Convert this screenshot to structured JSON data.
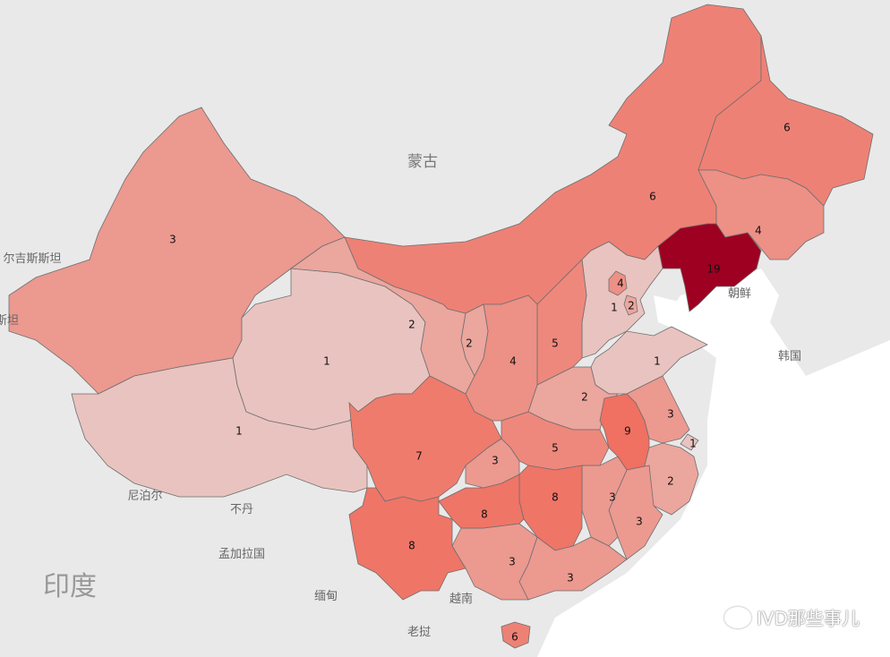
{
  "map": {
    "country_labels": {
      "mongolia": "蒙古",
      "kyrgyzstan": "尔吉斯斯坦",
      "tajikistan_partial": "斯坦",
      "north_korea": "朝鲜",
      "south_korea": "韩国",
      "nepal": "尼泊尔",
      "bhutan": "不丹",
      "bangladesh": "孟加拉国",
      "india": "印度",
      "myanmar": "缅甸",
      "vietnam": "越南",
      "laos": "老挝"
    },
    "color_scale": {
      "low": "#e9c3bf",
      "high": "#9e0021"
    },
    "regions": [
      {
        "id": "xinjiang",
        "value": 3
      },
      {
        "id": "tibet",
        "value": 1
      },
      {
        "id": "qinghai",
        "value": 1
      },
      {
        "id": "gansu",
        "value": 2
      },
      {
        "id": "inner-mongolia",
        "value": 6
      },
      {
        "id": "heilongjiang",
        "value": 6
      },
      {
        "id": "jilin",
        "value": 4
      },
      {
        "id": "liaoning",
        "value": 19
      },
      {
        "id": "hebei",
        "value": 1
      },
      {
        "id": "beijing",
        "value": 4
      },
      {
        "id": "tianjin",
        "value": 2
      },
      {
        "id": "shanxi",
        "value": 5
      },
      {
        "id": "shandong",
        "value": 1
      },
      {
        "id": "henan",
        "value": 2
      },
      {
        "id": "anhui",
        "value": 9
      },
      {
        "id": "jiangsu",
        "value": 3
      },
      {
        "id": "shanghai",
        "value": 1
      },
      {
        "id": "zhejiang",
        "value": 2
      },
      {
        "id": "fujian",
        "value": 3
      },
      {
        "id": "jiangxi",
        "value": 3
      },
      {
        "id": "hubei",
        "value": 5
      },
      {
        "id": "hunan",
        "value": 8
      },
      {
        "id": "guangdong",
        "value": 3
      },
      {
        "id": "guangxi",
        "value": 3
      },
      {
        "id": "hainan",
        "value": 6
      },
      {
        "id": "guizhou",
        "value": 8
      },
      {
        "id": "chongqing",
        "value": 3
      },
      {
        "id": "sichuan",
        "value": 7
      },
      {
        "id": "yunnan",
        "value": 8
      },
      {
        "id": "shaanxi",
        "value": 4
      },
      {
        "id": "ningxia",
        "value": 2
      }
    ]
  },
  "watermark": "IVD那些事儿"
}
